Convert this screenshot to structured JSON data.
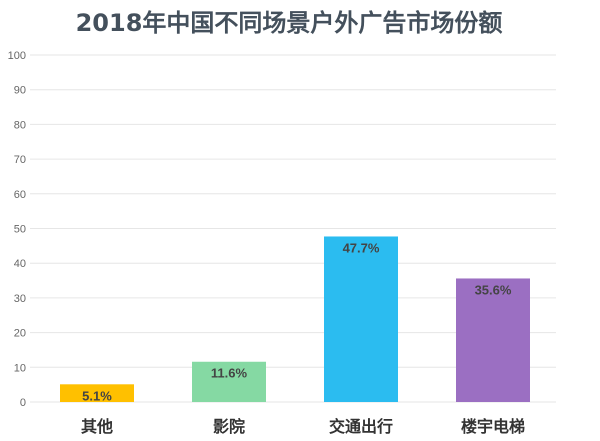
{
  "chart_data": {
    "type": "bar",
    "title": "2018年中国不同场景户外广告市场份额",
    "categories": [
      "其他",
      "影院",
      "交通出行",
      "楼宇电梯"
    ],
    "values": [
      5.1,
      11.6,
      47.7,
      35.6
    ],
    "data_labels": [
      "5.1%",
      "11.6%",
      "47.7%",
      "35.6%"
    ],
    "colors": [
      "#ffc000",
      "#85d9a3",
      "#2bbcf0",
      "#9b6fc2"
    ],
    "ylim": [
      0,
      100
    ],
    "yticks": [
      "0",
      "10",
      "20",
      "30",
      "40",
      "50",
      "60",
      "70",
      "80",
      "90",
      "100"
    ],
    "grid": true,
    "xlabel": "",
    "ylabel": ""
  }
}
